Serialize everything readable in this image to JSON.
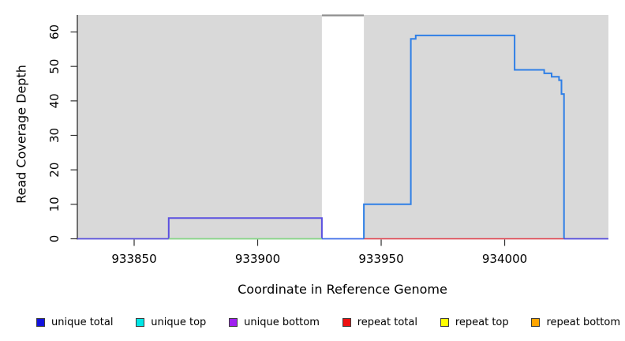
{
  "figure": {
    "xlabel": "Coordinate in Reference Genome",
    "ylabel": "Read Coverage Depth"
  },
  "legend": {
    "items": [
      {
        "slug": "unique-total",
        "label": "unique total",
        "color": "#1212dd"
      },
      {
        "slug": "unique-top",
        "label": "unique top",
        "color": "#00e6e6"
      },
      {
        "slug": "unique-bottom",
        "label": "unique bottom",
        "color": "#a020f0"
      },
      {
        "slug": "repeat-total",
        "label": "repeat total",
        "color": "#ee1111"
      },
      {
        "slug": "repeat-top",
        "label": "repeat top",
        "color": "#ffff00"
      },
      {
        "slug": "repeat-bottom",
        "label": "repeat bottom",
        "color": "#ffa500"
      }
    ]
  },
  "chart_data": {
    "type": "line",
    "subtype": "step-coverage",
    "title": "",
    "xlabel": "Coordinate in Reference Genome",
    "ylabel": "Read Coverage Depth",
    "xlim": [
      933827,
      934042
    ],
    "ylim": [
      0,
      65
    ],
    "x_ticks": [
      933850,
      933900,
      933950,
      934000
    ],
    "y_ticks": [
      0,
      10,
      20,
      30,
      40,
      50,
      60
    ],
    "grid": false,
    "legend_position": "bottom",
    "plot_bg": "#d9d9d9",
    "masked_region": {
      "x0": 933926,
      "x1": 933943,
      "fill": "#ffffff",
      "top_marker_color": "#8f8f8f",
      "top_marker_depth": 64.8
    },
    "series": [
      {
        "name": "unique-zero-baseline-left",
        "color": "#5a50dc",
        "width": 1.8,
        "points": [
          [
            933827,
            0
          ],
          [
            933864,
            0
          ]
        ]
      },
      {
        "name": "unique-bottom-rect",
        "color": "#5b50e0",
        "width": 2,
        "points": [
          [
            933864,
            0
          ],
          [
            933864,
            6
          ],
          [
            933926,
            6
          ],
          [
            933926,
            0
          ]
        ]
      },
      {
        "name": "unique-top-zero-baseline",
        "color": "#86d586",
        "width": 1.8,
        "points": [
          [
            933864,
            0
          ],
          [
            933926,
            0
          ]
        ]
      },
      {
        "name": "masked-gap-baseline",
        "color": "#3f6ee8",
        "width": 1.8,
        "points": [
          [
            933926,
            0
          ],
          [
            933943,
            0
          ]
        ]
      },
      {
        "name": "repeat-total-baseline",
        "color": "#e1404c",
        "width": 1.5,
        "points": [
          [
            933943,
            0
          ],
          [
            934024,
            0
          ]
        ]
      },
      {
        "name": "unique-total-curve",
        "color": "#2f7fe6",
        "width": 2,
        "points": [
          [
            933943,
            0
          ],
          [
            933943,
            10
          ],
          [
            933962,
            10
          ],
          [
            933962,
            58
          ],
          [
            933964,
            58
          ],
          [
            933964,
            59
          ],
          [
            934004,
            59
          ],
          [
            934004,
            49
          ],
          [
            934016,
            49
          ],
          [
            934016,
            48
          ],
          [
            934019,
            48
          ],
          [
            934019,
            47
          ],
          [
            934022,
            47
          ],
          [
            934022,
            46
          ],
          [
            934023,
            46
          ],
          [
            934023,
            42
          ],
          [
            934024,
            42
          ],
          [
            934024,
            0
          ]
        ]
      },
      {
        "name": "unique-zero-baseline-right",
        "color": "#544bdc",
        "width": 1.8,
        "points": [
          [
            934024,
            0
          ],
          [
            934042,
            0
          ]
        ]
      },
      {
        "name": "masked-gap-top-marker",
        "color": "#8f8f8f",
        "width": 2.2,
        "points": [
          [
            933926,
            64.8
          ],
          [
            933943,
            64.8
          ]
        ]
      }
    ]
  }
}
